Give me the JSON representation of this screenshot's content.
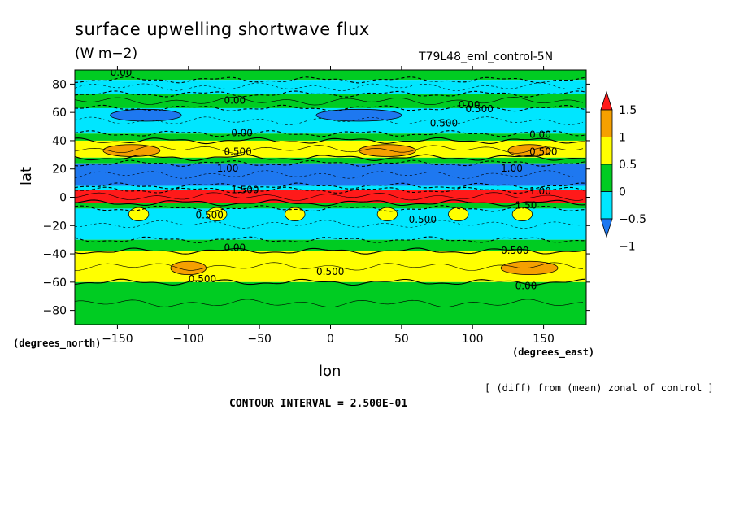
{
  "chart_data": {
    "type": "heatmap",
    "title": "surface upwelling shortwave flux",
    "units": "(W m−2)",
    "run_label": "T79L48_eml_control-5N",
    "xlabel": "lon",
    "ylabel": "lat",
    "x_units": "(degrees_east)",
    "y_units": "(degrees_north)",
    "xlim": [
      -180,
      180
    ],
    "ylim": [
      -90,
      90
    ],
    "xticks": [
      -150,
      -100,
      -50,
      0,
      50,
      100,
      150
    ],
    "yticks": [
      -80,
      -60,
      -40,
      -20,
      0,
      20,
      40,
      60,
      80
    ],
    "note": "[ (diff) from (mean) zonal of control ]",
    "contour_interval": "CONTOUR INTERVAL = 2.500E-01",
    "colorbar": {
      "levels": [
        -1,
        -0.5,
        0,
        0.5,
        1,
        1.5
      ],
      "labels": [
        "1.5",
        "1",
        "0.5",
        "0",
        "−0.5",
        "−1"
      ],
      "colors": [
        "#1e78f0",
        "#00e6ff",
        "#00cc22",
        "#ffff00",
        "#f5a000",
        "#ff1a1a"
      ]
    },
    "bands": [
      {
        "lat_top": 90,
        "lat_bot": 83,
        "level": 0
      },
      {
        "lat_top": 83,
        "lat_bot": 73,
        "level": -0.5
      },
      {
        "lat_top": 73,
        "lat_bot": 63,
        "level": 0
      },
      {
        "lat_top": 63,
        "lat_bot": 45,
        "level": -0.5
      },
      {
        "lat_top": 45,
        "lat_bot": 40,
        "level": 0
      },
      {
        "lat_top": 40,
        "lat_bot": 28,
        "level": 0.5
      },
      {
        "lat_top": 28,
        "lat_bot": 24,
        "level": 0
      },
      {
        "lat_top": 24,
        "lat_bot": 8,
        "level": -1
      },
      {
        "lat_top": 8,
        "lat_bot": 5,
        "level": -0.5
      },
      {
        "lat_top": 5,
        "lat_bot": -4,
        "level": 1.5
      },
      {
        "lat_top": -4,
        "lat_bot": -8,
        "level": 0
      },
      {
        "lat_top": -8,
        "lat_bot": -30,
        "level": -0.5
      },
      {
        "lat_top": -30,
        "lat_bot": -38,
        "level": 0
      },
      {
        "lat_top": -38,
        "lat_bot": -60,
        "level": 0.5
      },
      {
        "lat_top": -60,
        "lat_bot": -90,
        "level": 0
      }
    ],
    "patches": [
      {
        "lon": -140,
        "lat": 33,
        "w": 40,
        "h": 5,
        "level": 1
      },
      {
        "lon": 40,
        "lat": 33,
        "w": 40,
        "h": 5,
        "level": 1
      },
      {
        "lon": 140,
        "lat": 33,
        "w": 30,
        "h": 5,
        "level": 1
      },
      {
        "lon": -135,
        "lat": -12,
        "w": 14,
        "h": 6,
        "level": 0.5
      },
      {
        "lon": -80,
        "lat": -12,
        "w": 14,
        "h": 6,
        "level": 0.5
      },
      {
        "lon": -25,
        "lat": -12,
        "w": 14,
        "h": 6,
        "level": 0.5
      },
      {
        "lon": 40,
        "lat": -12,
        "w": 14,
        "h": 6,
        "level": 0.5
      },
      {
        "lon": 90,
        "lat": -12,
        "w": 14,
        "h": 6,
        "level": 0.5
      },
      {
        "lon": 135,
        "lat": -12,
        "w": 14,
        "h": 6,
        "level": 0.5
      },
      {
        "lon": -100,
        "lat": -50,
        "w": 25,
        "h": 6,
        "level": 1
      },
      {
        "lon": 140,
        "lat": -50,
        "w": 40,
        "h": 6,
        "level": 1
      },
      {
        "lon": -130,
        "lat": 58,
        "w": 50,
        "h": 5,
        "level": -1
      },
      {
        "lon": 20,
        "lat": 58,
        "w": 60,
        "h": 5,
        "level": -1
      }
    ],
    "contour_labels": [
      {
        "lon": -155,
        "lat": 86,
        "text": "0.00"
      },
      {
        "lon": -75,
        "lat": 66,
        "text": "0.00"
      },
      {
        "lon": 90,
        "lat": 63,
        "text": "0.00"
      },
      {
        "lon": 95,
        "lat": 60,
        "text": "0.500"
      },
      {
        "lon": 70,
        "lat": 50,
        "text": "0.500"
      },
      {
        "lon": -70,
        "lat": 43,
        "text": "0.00"
      },
      {
        "lon": -75,
        "lat": 30,
        "text": "0.500"
      },
      {
        "lon": -80,
        "lat": 18,
        "text": "1.00"
      },
      {
        "lon": 140,
        "lat": 42,
        "text": "0.00"
      },
      {
        "lon": 140,
        "lat": 30,
        "text": "0.500"
      },
      {
        "lon": 120,
        "lat": 18,
        "text": "1.00"
      },
      {
        "lon": -70,
        "lat": 3,
        "text": "1.500"
      },
      {
        "lon": 140,
        "lat": 2,
        "text": "1.00"
      },
      {
        "lon": 130,
        "lat": -8,
        "text": "1.50"
      },
      {
        "lon": -95,
        "lat": -15,
        "text": "0.500"
      },
      {
        "lon": 55,
        "lat": -18,
        "text": "0.500"
      },
      {
        "lon": -75,
        "lat": -38,
        "text": "0.00"
      },
      {
        "lon": 120,
        "lat": -40,
        "text": "0.500"
      },
      {
        "lon": -100,
        "lat": -60,
        "text": "0.500"
      },
      {
        "lon": -10,
        "lat": -55,
        "text": "0.500"
      },
      {
        "lon": 130,
        "lat": -65,
        "text": "0.00"
      }
    ]
  }
}
